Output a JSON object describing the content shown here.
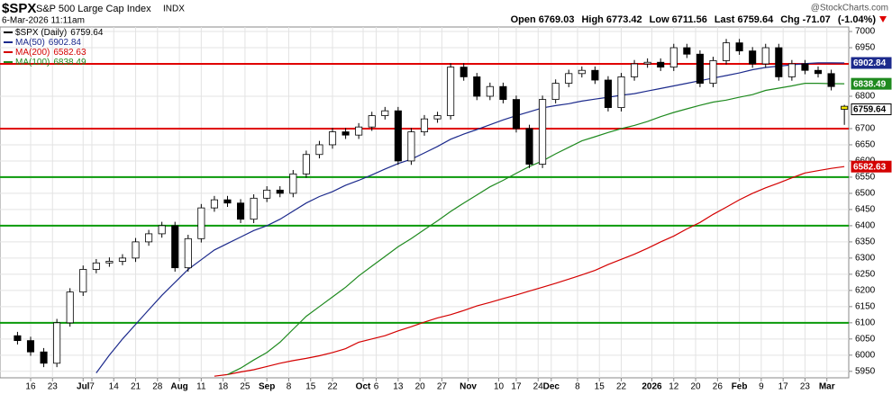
{
  "chart_data": {
    "type": "candlestick",
    "title": "$SPX",
    "subtitle": "S&P 500 Large Cap Index",
    "exchange": "INDX",
    "date": "6-Mar-2026 11:11am",
    "source": "@StockCharts.com",
    "quote_labels": [
      "Open",
      "High",
      "Low",
      "Last",
      "Chg"
    ],
    "change": -71.07,
    "change_pct_label": "(-1.04%)",
    "price_legend": "$SPX (Daily)",
    "x": [
      0,
      3,
      6,
      9,
      12,
      15,
      18,
      21,
      24,
      27,
      30,
      33,
      36,
      39,
      42,
      45,
      48,
      51,
      54,
      57,
      60,
      63,
      66,
      69,
      72,
      75,
      78,
      81,
      84,
      87,
      90,
      93,
      96,
      99,
      102,
      105,
      108,
      111,
      114,
      117,
      120,
      123,
      126,
      129,
      132,
      135,
      138,
      141,
      144,
      147,
      150,
      153,
      156,
      159,
      162,
      165,
      168,
      171,
      174,
      177,
      180,
      183,
      186,
      189
    ],
    "open": [
      6060,
      6045,
      6010,
      5975,
      6100,
      6195,
      6265,
      6285,
      6290,
      6300,
      6350,
      6375,
      6400,
      6270,
      6360,
      6455,
      6480,
      6470,
      6420,
      6485,
      6510,
      6500,
      6560,
      6620,
      6650,
      6690,
      6680,
      6705,
      6740,
      6755,
      6600,
      6690,
      6730,
      6740,
      6890,
      6860,
      6800,
      6830,
      6790,
      6700,
      6590,
      6790,
      6840,
      6870,
      6880,
      6850,
      6765,
      6860,
      6900,
      6905,
      6890,
      6950,
      6930,
      6840,
      6910,
      6965,
      6940,
      6900,
      6950,
      6860,
      6900,
      6880,
      6870,
      6769.03
    ],
    "high": [
      6072,
      6057,
      6022,
      6112,
      6207,
      6277,
      6297,
      6302,
      6312,
      6362,
      6387,
      6412,
      6412,
      6372,
      6467,
      6492,
      6492,
      6482,
      6497,
      6522,
      6522,
      6572,
      6632,
      6662,
      6702,
      6702,
      6717,
      6752,
      6767,
      6767,
      6702,
      6742,
      6752,
      6902,
      6902,
      6872,
      6842,
      6842,
      6802,
      6712,
      6802,
      6852,
      6882,
      6892,
      6892,
      6862,
      6872,
      6912,
      6917,
      6917,
      6962,
      6962,
      6942,
      6922,
      6977,
      6977,
      6952,
      6962,
      6962,
      6912,
      6912,
      6892,
      6882,
      6773.42
    ],
    "low": [
      6033,
      5998,
      5963,
      5963,
      6088,
      6183,
      6253,
      6273,
      6278,
      6288,
      6338,
      6363,
      6258,
      6258,
      6348,
      6443,
      6458,
      6408,
      6408,
      6473,
      6488,
      6488,
      6548,
      6608,
      6638,
      6668,
      6668,
      6693,
      6728,
      6588,
      6588,
      6678,
      6718,
      6728,
      6848,
      6788,
      6788,
      6778,
      6688,
      6578,
      6578,
      6778,
      6828,
      6858,
      6838,
      6753,
      6753,
      6848,
      6888,
      6878,
      6878,
      6918,
      6828,
      6828,
      6898,
      6928,
      6888,
      6888,
      6848,
      6848,
      6868,
      6858,
      6818,
      6711.56
    ],
    "close": [
      6045,
      6010,
      5975,
      6100,
      6195,
      6265,
      6285,
      6290,
      6300,
      6350,
      6375,
      6400,
      6270,
      6360,
      6455,
      6480,
      6470,
      6420,
      6485,
      6510,
      6500,
      6560,
      6620,
      6650,
      6690,
      6680,
      6705,
      6740,
      6755,
      6600,
      6690,
      6730,
      6740,
      6890,
      6860,
      6800,
      6830,
      6790,
      6700,
      6590,
      6790,
      6840,
      6870,
      6880,
      6850,
      6765,
      6860,
      6900,
      6905,
      6890,
      6950,
      6930,
      6840,
      6910,
      6965,
      6940,
      6900,
      6950,
      6860,
      6900,
      6880,
      6870,
      6830,
      6759.64
    ],
    "series": [
      {
        "name": "MA(50)",
        "color": "#1c2a8c",
        "values": [
          null,
          null,
          null,
          null,
          null,
          null,
          5945,
          6000,
          6050,
          6095,
          6140,
          6185,
          6225,
          6265,
          6295,
          6325,
          6345,
          6365,
          6385,
          6400,
          6420,
          6445,
          6470,
          6490,
          6505,
          6525,
          6540,
          6557,
          6575,
          6592,
          6605,
          6625,
          6645,
          6667,
          6683,
          6697,
          6712,
          6727,
          6740,
          6752,
          6764,
          6771,
          6777,
          6785,
          6791,
          6797,
          6803,
          6808,
          6816,
          6824,
          6832,
          6840,
          6848,
          6856,
          6864,
          6872,
          6882,
          6889,
          6893,
          6897,
          6901,
          6903,
          6903,
          6902.84
        ]
      },
      {
        "name": "MA(200)",
        "color": "#d40000",
        "values": [
          null,
          null,
          null,
          null,
          null,
          null,
          null,
          null,
          null,
          null,
          null,
          null,
          null,
          null,
          null,
          5935,
          5940,
          5948,
          5955,
          5965,
          5975,
          5983,
          5990,
          5998,
          6008,
          6020,
          6040,
          6050,
          6060,
          6075,
          6088,
          6102,
          6115,
          6125,
          6138,
          6152,
          6163,
          6175,
          6186,
          6198,
          6210,
          6222,
          6235,
          6248,
          6262,
          6280,
          6296,
          6312,
          6330,
          6350,
          6368,
          6390,
          6410,
          6435,
          6457,
          6480,
          6500,
          6517,
          6532,
          6548,
          6563,
          6570,
          6577,
          6582.63
        ]
      },
      {
        "name": "MA(100)",
        "color": "#1f8a1f",
        "values": [
          null,
          null,
          null,
          null,
          null,
          null,
          null,
          null,
          null,
          null,
          null,
          null,
          null,
          null,
          null,
          null,
          5940,
          5960,
          5985,
          6008,
          6040,
          6080,
          6120,
          6150,
          6180,
          6210,
          6245,
          6275,
          6305,
          6335,
          6360,
          6388,
          6415,
          6444,
          6470,
          6495,
          6520,
          6540,
          6562,
          6583,
          6600,
          6622,
          6642,
          6662,
          6675,
          6688,
          6700,
          6710,
          6722,
          6737,
          6750,
          6761,
          6772,
          6782,
          6788,
          6797,
          6805,
          6818,
          6825,
          6832,
          6840,
          6840,
          6839,
          6838.49
        ]
      }
    ],
    "levels": [
      {
        "value": 6900,
        "color": "#e00000"
      },
      {
        "value": 6700,
        "color": "#e00000"
      },
      {
        "value": 6550,
        "color": "#0a9a0a"
      },
      {
        "value": 6400,
        "color": "#0a9a0a"
      },
      {
        "value": 6100,
        "color": "#0a9a0a"
      }
    ],
    "xlim": [
      -4,
      190
    ],
    "ylim": [
      5930,
      7014
    ],
    "xticks": [
      {
        "value": 3,
        "label": "16"
      },
      {
        "value": 8,
        "label": "23"
      },
      {
        "value": 15,
        "label": "Jul"
      },
      {
        "value": 17,
        "label": "7"
      },
      {
        "value": 22,
        "label": "14"
      },
      {
        "value": 27,
        "label": "21"
      },
      {
        "value": 32,
        "label": "28"
      },
      {
        "value": 37,
        "label": "Aug"
      },
      {
        "value": 42,
        "label": "11"
      },
      {
        "value": 47,
        "label": "18"
      },
      {
        "value": 52,
        "label": "25"
      },
      {
        "value": 57,
        "label": "Sep"
      },
      {
        "value": 62,
        "label": "8"
      },
      {
        "value": 67,
        "label": "15"
      },
      {
        "value": 72,
        "label": "22"
      },
      {
        "value": 79,
        "label": "Oct"
      },
      {
        "value": 82,
        "label": "6"
      },
      {
        "value": 87,
        "label": "13"
      },
      {
        "value": 92,
        "label": "20"
      },
      {
        "value": 97,
        "label": "27"
      },
      {
        "value": 103,
        "label": "Nov"
      },
      {
        "value": 110,
        "label": "10"
      },
      {
        "value": 114,
        "label": "17"
      },
      {
        "value": 119,
        "label": "24"
      },
      {
        "value": 122,
        "label": "Dec"
      },
      {
        "value": 128,
        "label": "8"
      },
      {
        "value": 133,
        "label": "15"
      },
      {
        "value": 138,
        "label": "22"
      },
      {
        "value": 145,
        "label": "2026"
      },
      {
        "value": 150,
        "label": "12"
      },
      {
        "value": 155,
        "label": "20"
      },
      {
        "value": 160,
        "label": "26"
      },
      {
        "value": 165,
        "label": "Feb"
      },
      {
        "value": 170,
        "label": "9"
      },
      {
        "value": 175,
        "label": "17"
      },
      {
        "value": 180,
        "label": "23"
      },
      {
        "value": 185,
        "label": "Mar"
      }
    ],
    "yticks": [
      7000,
      6950,
      6800,
      6700,
      6650,
      6600,
      6550,
      6500,
      6450,
      6400,
      6350,
      6300,
      6250,
      6200,
      6150,
      6100,
      6050,
      6000,
      5950
    ],
    "grid": true
  }
}
